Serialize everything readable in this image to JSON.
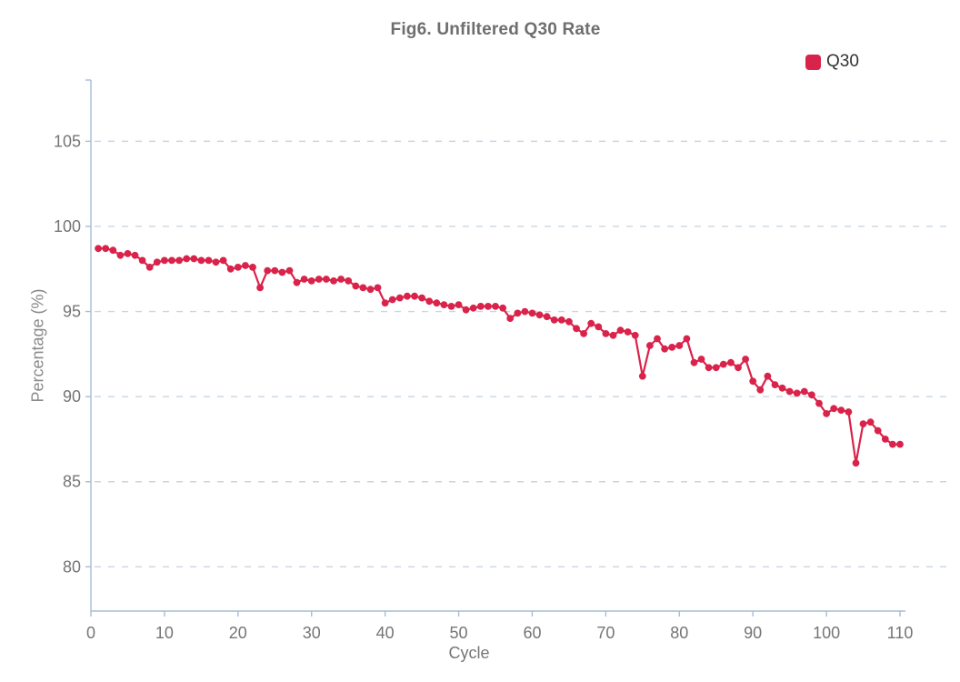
{
  "title": "Fig6. Unfiltered Q30 Rate",
  "legend": {
    "position": "top-right",
    "items": [
      {
        "label": "Q30",
        "color": "#d9234b"
      }
    ]
  },
  "colors": {
    "accent": "#d9234b",
    "axis_line": "#a7bcd6",
    "gridline": "#c9d5e2",
    "tick_label": "#757575",
    "axis_name": "#8a8a8a",
    "title_text": "#6e6e6e",
    "legend_text": "#333333",
    "background": "#ffffff"
  },
  "chart_data": {
    "type": "line",
    "title": "Fig6. Unfiltered Q30 Rate",
    "xlabel": "Cycle",
    "ylabel": "Percentage (%)",
    "x_ticks": [
      0,
      10,
      20,
      30,
      40,
      50,
      60,
      70,
      80,
      90,
      100,
      110
    ],
    "y_ticks": [
      80,
      85,
      90,
      95,
      100,
      105
    ],
    "xlim": [
      0,
      110
    ],
    "ylim": [
      77.4,
      108.6
    ],
    "grid": "horizontal-dashed",
    "legend_position": "top-right",
    "marker": "circle",
    "series": [
      {
        "name": "Q30",
        "color": "#d9234b",
        "x": [
          1,
          2,
          3,
          4,
          5,
          6,
          7,
          8,
          9,
          10,
          11,
          12,
          13,
          14,
          15,
          16,
          17,
          18,
          19,
          20,
          21,
          22,
          23,
          24,
          25,
          26,
          27,
          28,
          29,
          30,
          31,
          32,
          33,
          34,
          35,
          36,
          37,
          38,
          39,
          40,
          41,
          42,
          43,
          44,
          45,
          46,
          47,
          48,
          49,
          50,
          51,
          52,
          53,
          54,
          55,
          56,
          57,
          58,
          59,
          60,
          61,
          62,
          63,
          64,
          65,
          66,
          67,
          68,
          69,
          70,
          71,
          72,
          73,
          74,
          75,
          76,
          77,
          78,
          79,
          80,
          81,
          82,
          83,
          84,
          85,
          86,
          87,
          88,
          89,
          90,
          91,
          92,
          93,
          94,
          95,
          96,
          97,
          98,
          99,
          100,
          101,
          102,
          103,
          104,
          105,
          106,
          107,
          108,
          109,
          110
        ],
        "values": [
          98.7,
          98.7,
          98.6,
          98.3,
          98.4,
          98.3,
          98.0,
          97.6,
          97.9,
          98.0,
          98.0,
          98.0,
          98.1,
          98.1,
          98.0,
          98.0,
          97.9,
          98.0,
          97.5,
          97.6,
          97.7,
          97.6,
          96.4,
          97.4,
          97.4,
          97.3,
          97.4,
          96.7,
          96.9,
          96.8,
          96.9,
          96.9,
          96.8,
          96.9,
          96.8,
          96.5,
          96.4,
          96.3,
          96.4,
          95.5,
          95.7,
          95.8,
          95.9,
          95.9,
          95.8,
          95.6,
          95.5,
          95.4,
          95.3,
          95.4,
          95.1,
          95.2,
          95.3,
          95.3,
          95.3,
          95.2,
          94.6,
          94.9,
          95.0,
          94.9,
          94.8,
          94.7,
          94.5,
          94.5,
          94.4,
          94.0,
          93.7,
          94.3,
          94.1,
          93.7,
          93.6,
          93.9,
          93.8,
          93.6,
          91.2,
          93.0,
          93.4,
          92.8,
          92.9,
          93.0,
          93.4,
          92.0,
          92.2,
          91.7,
          91.7,
          91.9,
          92.0,
          91.7,
          92.2,
          90.9,
          90.4,
          91.2,
          90.7,
          90.5,
          90.3,
          90.2,
          90.3,
          90.1,
          89.6,
          89.0,
          89.3,
          89.2,
          89.1,
          86.1,
          88.4,
          88.5,
          88.0,
          87.5,
          87.2,
          87.2
        ]
      }
    ]
  }
}
